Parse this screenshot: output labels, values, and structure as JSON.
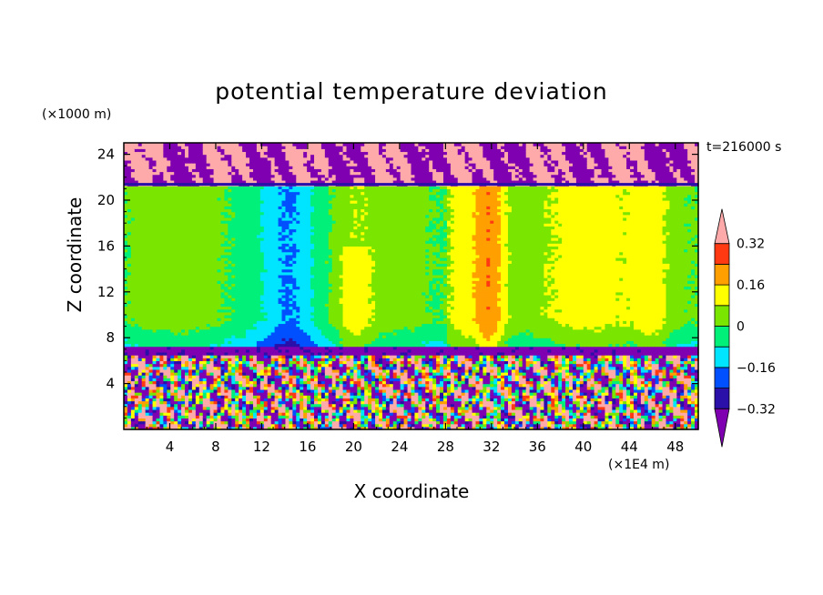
{
  "chart_data": {
    "type": "heatmap",
    "title": "potential temperature deviation",
    "xlabel": "X coordinate",
    "ylabel": "Z coordinate",
    "x_unit": "(×1E4 m)",
    "y_unit": "(×1000 m)",
    "time_label": "t=216000 s",
    "xlim": [
      0,
      50
    ],
    "ylim": [
      0,
      25
    ],
    "x_ticks": [
      4,
      8,
      12,
      16,
      20,
      24,
      28,
      32,
      36,
      40,
      44,
      48
    ],
    "y_ticks": [
      4,
      8,
      12,
      16,
      20,
      24
    ],
    "colorbar": {
      "levels": [
        -0.4,
        -0.32,
        -0.24,
        -0.16,
        -0.08,
        0,
        0.08,
        0.16,
        0.24,
        0.32,
        0.4
      ],
      "labels": [
        "0.32",
        "0.16",
        "0",
        "−0.16",
        "−0.32"
      ],
      "label_values": [
        0.32,
        0.16,
        0,
        -0.16,
        -0.32
      ],
      "colors": [
        "#7f00b0",
        "#2a0fa8",
        "#0050ff",
        "#00e5ff",
        "#00f07a",
        "#7ae600",
        "#ffff00",
        "#ff9f00",
        "#ff3a12",
        "#ffaaaa"
      ],
      "extend": "both"
    },
    "bands": [
      {
        "z": [
          21.3,
          25
        ],
        "description_value_range": [
          0.4,
          -0.4
        ]
      },
      {
        "z": [
          7.2,
          21.3
        ],
        "description_value_range": [
          -0.1,
          0.2
        ]
      },
      {
        "z": [
          6.6,
          7.2
        ],
        "description_value_range": [
          -0.4,
          -0.3
        ]
      },
      {
        "z": [
          0,
          6.6
        ],
        "description_value_range": [
          -0.4,
          0.4
        ]
      }
    ]
  }
}
